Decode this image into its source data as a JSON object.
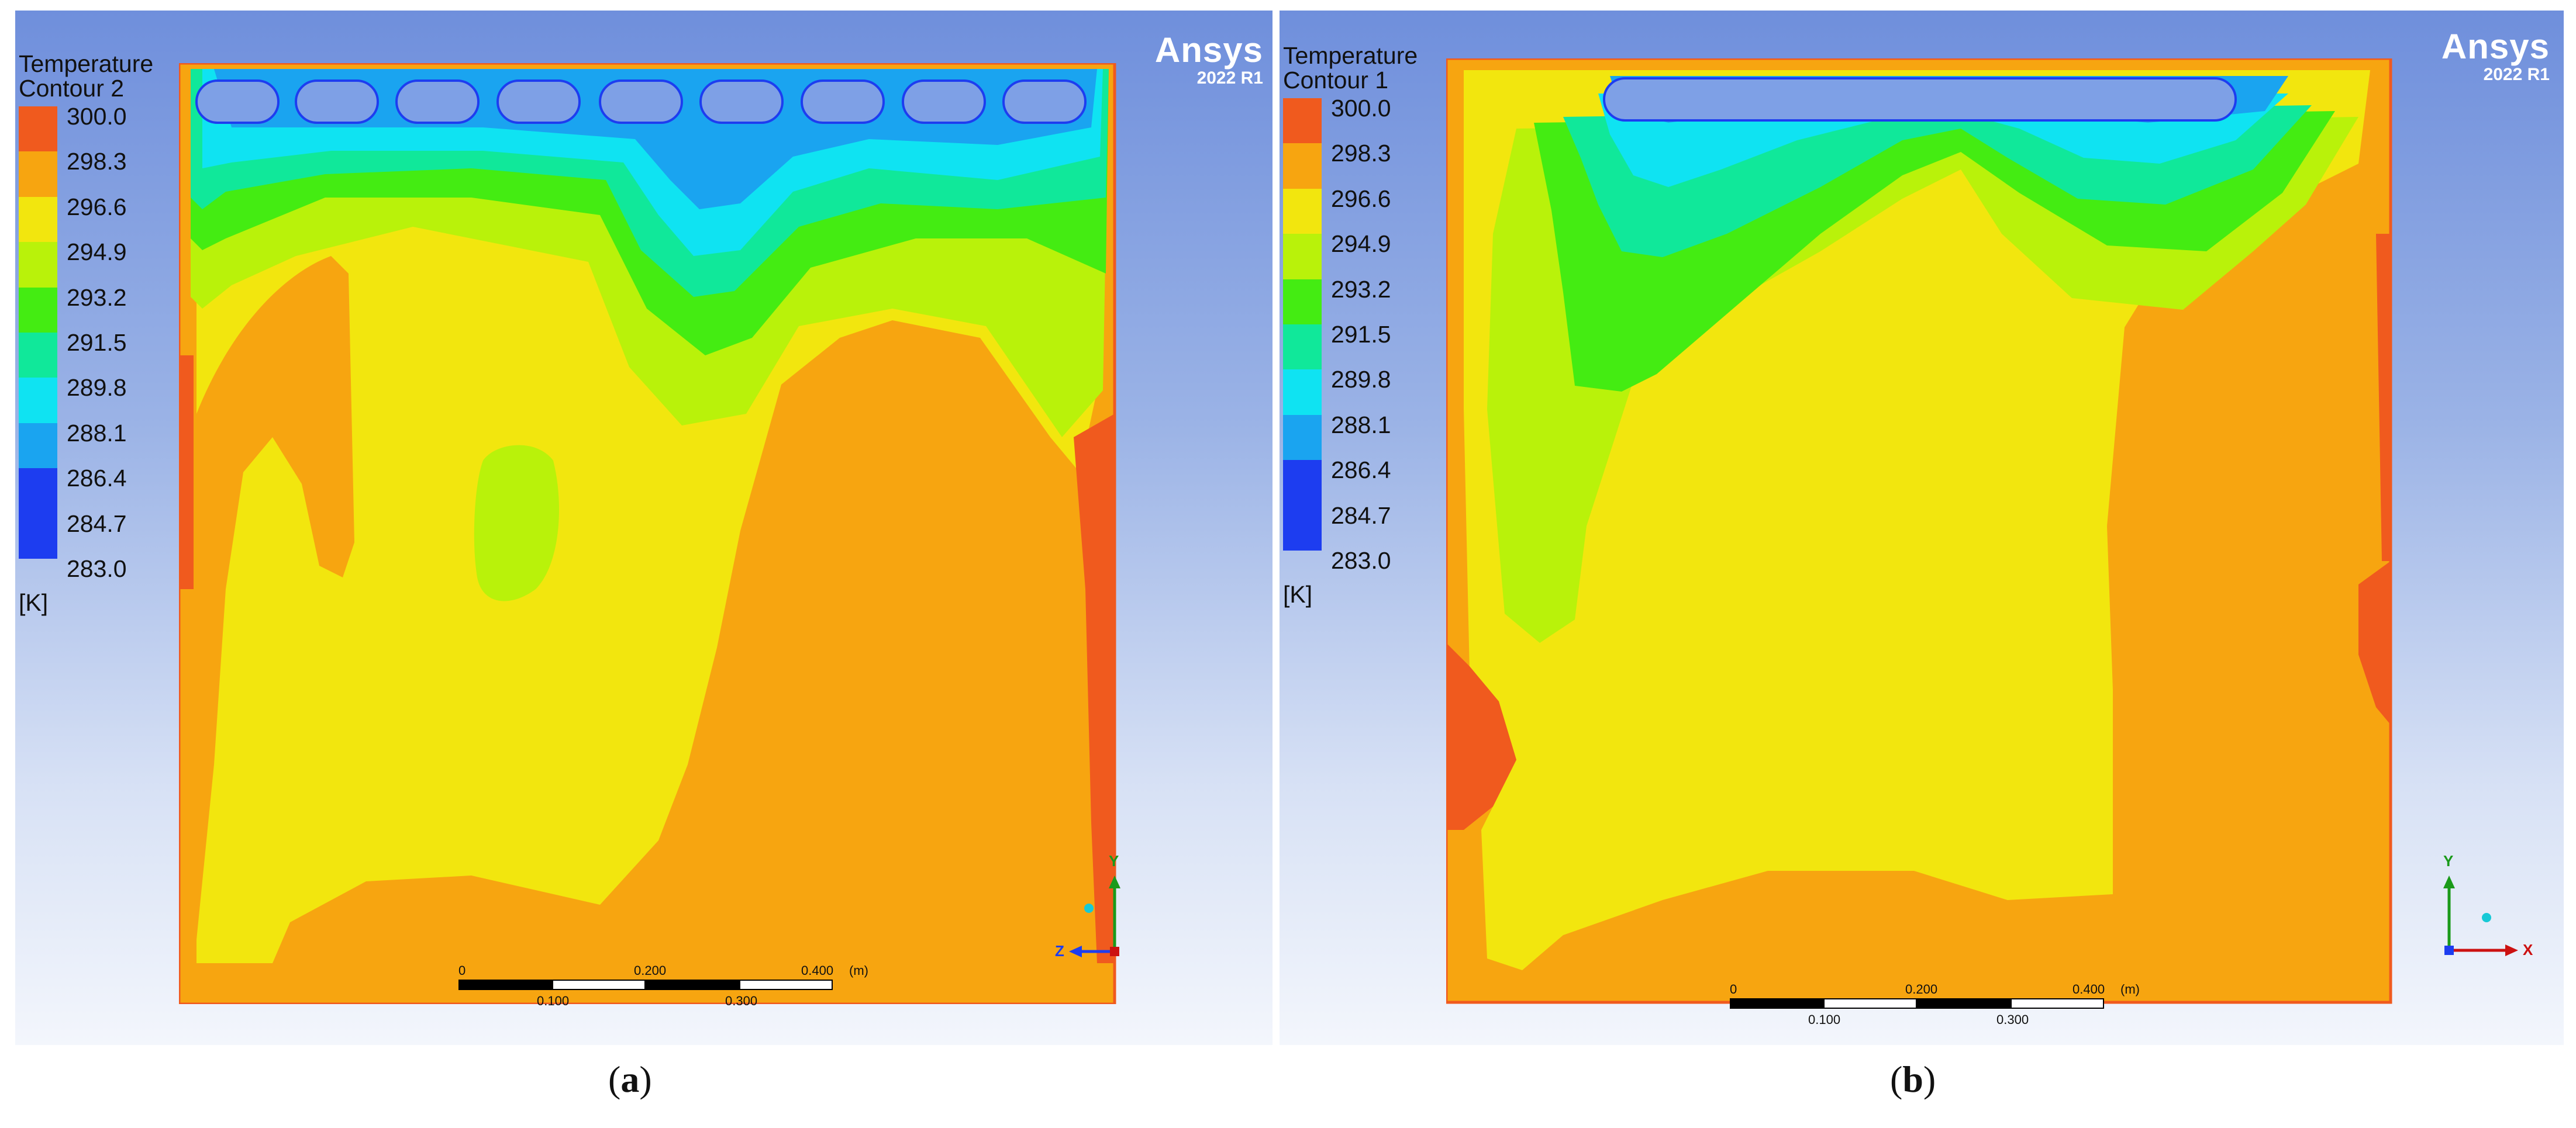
{
  "legend_colors": [
    "#f05a1e",
    "#f7a510",
    "#f2e60e",
    "#b9f20a",
    "#44ec12",
    "#10e89a",
    "#0fe3f2",
    "#1aa4f0",
    "#1d3df0",
    "#1d3df0"
  ],
  "panels": [
    {
      "title_line1": "Temperature",
      "title_line2": "Contour 2",
      "logo": "Ansys",
      "version": "2022 R1",
      "legend_values": [
        "300.0",
        "298.3",
        "296.6",
        "294.9",
        "293.2",
        "291.5",
        "289.8",
        "288.1",
        "286.4",
        "284.7",
        "283.0"
      ],
      "units": "[K]",
      "scale_top": [
        "0",
        "0.200",
        "0.400",
        "(m)"
      ],
      "scale_bottom": [
        "0.100",
        "0.300"
      ],
      "axis_y": "Y",
      "axis_h": "Z",
      "caption": "a"
    },
    {
      "title_line1": "Temperature",
      "title_line2": "Contour 1",
      "logo": "Ansys",
      "version": "2022 R1",
      "legend_values": [
        "300.0",
        "298.3",
        "296.6",
        "294.9",
        "293.2",
        "291.5",
        "289.8",
        "288.1",
        "286.4",
        "284.7",
        "283.0"
      ],
      "units": "[K]",
      "scale_top": [
        "0",
        "0.200",
        "0.400",
        "(m)"
      ],
      "scale_bottom": [
        "0.100",
        "0.300"
      ],
      "axis_y": "Y",
      "axis_h": "X",
      "caption": "b"
    }
  ]
}
